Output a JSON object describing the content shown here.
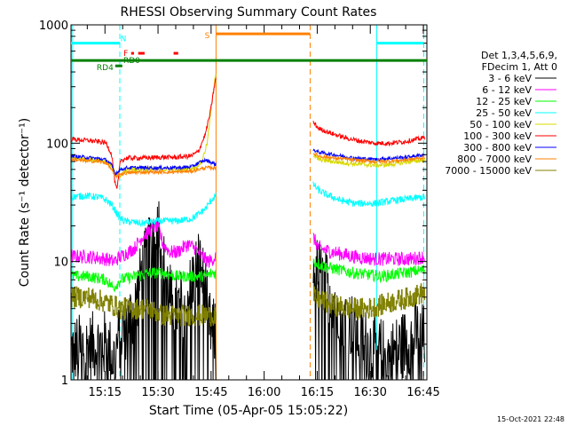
{
  "chart_data": {
    "type": "line",
    "title": "RHESSI Observing Summary Count Rates",
    "xlabel": "Start Time (05-Apr-05 15:05:22)",
    "ylabel": "Count Rate (s⁻¹ detector⁻¹)",
    "yscale": "log",
    "ylim": [
      1,
      1000
    ],
    "y_ticks": [
      {
        "value": 1,
        "label": "1"
      },
      {
        "value": 10,
        "label": "10"
      },
      {
        "value": 100,
        "label": "100"
      },
      {
        "value": 1000,
        "label": "1000"
      }
    ],
    "xlim_minutes": [
      0,
      100.6
    ],
    "x_ticks": [
      {
        "minute": 9.6,
        "label": "15:15"
      },
      {
        "minute": 24.6,
        "label": "15:30"
      },
      {
        "minute": 39.6,
        "label": "15:45"
      },
      {
        "minute": 54.6,
        "label": "16:00"
      },
      {
        "minute": 69.6,
        "label": "16:15"
      },
      {
        "minute": 84.6,
        "label": "16:30"
      },
      {
        "minute": 99.6,
        "label": "16:45"
      }
    ],
    "legend": {
      "placement": "right",
      "header": [
        "Det 1,3,4,5,6,9,",
        "FDecim 1, Att 0"
      ],
      "entries": [
        {
          "label": "3 - 6 keV",
          "color": "#000000"
        },
        {
          "label": "6 - 12 keV",
          "color": "#ff00ff"
        },
        {
          "label": "12 - 25 keV",
          "color": "#00ff00"
        },
        {
          "label": "25 - 50 keV",
          "color": "#00ffff"
        },
        {
          "label": "50 - 100 keV",
          "color": "#d8d800"
        },
        {
          "label": "100 - 300 keV",
          "color": "#ff0000"
        },
        {
          "label": "300 - 800 keV",
          "color": "#0000ff"
        },
        {
          "label": "800 - 7000 keV",
          "color": "#ff8000"
        },
        {
          "label": "7000 - 15000 keV",
          "color": "#808000"
        }
      ]
    },
    "series": [
      {
        "name": "3 - 6 keV",
        "color": "#000000",
        "noise": 0.6,
        "segments": [
          [
            [
              0,
              1.8
            ],
            [
              10,
              2
            ],
            [
              12,
              1.5
            ],
            [
              14,
              2.5
            ],
            [
              16,
              3
            ],
            [
              18,
              4
            ],
            [
              20,
              8
            ],
            [
              22,
              12
            ],
            [
              24,
              25
            ],
            [
              25,
              20
            ],
            [
              26,
              10
            ],
            [
              28,
              5
            ],
            [
              30,
              4
            ],
            [
              33,
              5
            ],
            [
              36,
              10
            ],
            [
              38,
              6
            ],
            [
              39,
              3
            ],
            [
              40,
              2.5
            ],
            [
              41,
              2.5
            ]
          ],
          [
            [
              68.5,
              9
            ],
            [
              70,
              8
            ],
            [
              73,
              6
            ],
            [
              76,
              4
            ],
            [
              79,
              3
            ],
            [
              82,
              2.2
            ],
            [
              86,
              1.8
            ],
            [
              90,
              1.6
            ],
            [
              94,
              2
            ],
            [
              98,
              2.5
            ],
            [
              100,
              2.2
            ]
          ]
        ]
      },
      {
        "name": "6 - 12 keV",
        "color": "#ff00ff",
        "noise": 0.12,
        "segments": [
          [
            [
              0,
              11
            ],
            [
              5,
              11
            ],
            [
              10,
              10.5
            ],
            [
              12,
              10
            ],
            [
              14,
              11
            ],
            [
              18,
              13
            ],
            [
              20,
              16
            ],
            [
              22,
              18
            ],
            [
              24,
              20
            ],
            [
              25,
              18
            ],
            [
              26,
              14
            ],
            [
              28,
              12
            ],
            [
              30,
              12
            ],
            [
              33,
              14
            ],
            [
              35,
              13
            ],
            [
              37,
              11
            ],
            [
              39,
              10
            ],
            [
              41,
              11
            ]
          ],
          [
            [
              68.5,
              16
            ],
            [
              70,
              13
            ],
            [
              74,
              12
            ],
            [
              80,
              11
            ],
            [
              86,
              10.5
            ],
            [
              92,
              10.5
            ],
            [
              96,
              10.5
            ],
            [
              100,
              11
            ]
          ]
        ]
      },
      {
        "name": "12 - 25 keV",
        "color": "#00ff00",
        "noise": 0.1,
        "segments": [
          [
            [
              0,
              7.5
            ],
            [
              5,
              7.5
            ],
            [
              10,
              7
            ],
            [
              12,
              6
            ],
            [
              14,
              7
            ],
            [
              18,
              7.5
            ],
            [
              22,
              8
            ],
            [
              26,
              8
            ],
            [
              30,
              7.5
            ],
            [
              34,
              7.5
            ],
            [
              38,
              7.5
            ],
            [
              40,
              8
            ],
            [
              41,
              8
            ]
          ],
          [
            [
              68.5,
              10
            ],
            [
              72,
              9
            ],
            [
              80,
              8
            ],
            [
              88,
              7.5
            ],
            [
              94,
              8
            ],
            [
              100,
              8.5
            ]
          ]
        ]
      },
      {
        "name": "25 - 50 keV",
        "color": "#00ffff",
        "noise": 0.06,
        "segments": [
          [
            [
              0,
              35
            ],
            [
              4,
              36
            ],
            [
              8,
              35
            ],
            [
              10,
              33
            ],
            [
              11.5,
              30
            ],
            [
              12.5,
              27
            ],
            [
              13.5,
              24
            ],
            [
              15,
              22
            ],
            [
              20,
              21
            ],
            [
              25,
              22
            ],
            [
              30,
              22
            ],
            [
              34,
              23
            ],
            [
              36,
              25
            ],
            [
              38,
              28
            ],
            [
              40,
              34
            ],
            [
              41,
              36
            ]
          ],
          [
            [
              68.5,
              45
            ],
            [
              70,
              40
            ],
            [
              72,
              37
            ],
            [
              76,
              33
            ],
            [
              80,
              31
            ],
            [
              86,
              31
            ],
            [
              92,
              33
            ],
            [
              96,
              34
            ],
            [
              100,
              35
            ]
          ]
        ]
      },
      {
        "name": "50 - 100 keV",
        "color": "#d8d800",
        "noise": 0.04,
        "segments": [
          [
            [
              0,
              75
            ],
            [
              5,
              73
            ],
            [
              10,
              71
            ],
            [
              11.5,
              65
            ],
            [
              12.5,
              55
            ],
            [
              13.5,
              50
            ],
            [
              14.5,
              55
            ],
            [
              16,
              60
            ],
            [
              20,
              60
            ],
            [
              25,
              60
            ],
            [
              30,
              60
            ],
            [
              35,
              62
            ],
            [
              37,
              70
            ],
            [
              38.5,
              100
            ],
            [
              39.5,
              180
            ],
            [
              40.5,
              330
            ],
            [
              41,
              400
            ]
          ],
          [
            [
              68.5,
              78
            ],
            [
              70,
              73
            ],
            [
              74,
              70
            ],
            [
              80,
              67
            ],
            [
              86,
              65
            ],
            [
              90,
              66
            ],
            [
              96,
              70
            ],
            [
              100,
              72
            ]
          ]
        ]
      },
      {
        "name": "100 - 300 keV",
        "color": "#ff0000",
        "noise": 0.04,
        "segments": [
          [
            [
              0,
              108
            ],
            [
              4,
              106
            ],
            [
              8,
              103
            ],
            [
              10,
              100
            ],
            [
              11.5,
              80
            ],
            [
              12.5,
              45
            ],
            [
              13,
              40
            ],
            [
              14,
              72
            ],
            [
              16,
              75
            ],
            [
              20,
              75
            ],
            [
              25,
              76
            ],
            [
              30,
              76
            ],
            [
              34,
              78
            ],
            [
              36,
              85
            ],
            [
              38,
              120
            ],
            [
              39.5,
              190
            ],
            [
              40.5,
              300
            ],
            [
              41,
              360
            ]
          ],
          [
            [
              68.5,
              150
            ],
            [
              70,
              133
            ],
            [
              74,
              120
            ],
            [
              78,
              110
            ],
            [
              82,
              104
            ],
            [
              86,
              100
            ],
            [
              90,
              100
            ],
            [
              94,
              103
            ],
            [
              98,
              108
            ],
            [
              100,
              112
            ]
          ]
        ]
      },
      {
        "name": "300 - 800 keV",
        "color": "#0000ff",
        "noise": 0.03,
        "segments": [
          [
            [
              0,
              78
            ],
            [
              4,
              76
            ],
            [
              8,
              74
            ],
            [
              10,
              72
            ],
            [
              11.5,
              65
            ],
            [
              12.5,
              55
            ],
            [
              14,
              60
            ],
            [
              16,
              62
            ],
            [
              20,
              62
            ],
            [
              25,
              62
            ],
            [
              30,
              62
            ],
            [
              34,
              63
            ],
            [
              36,
              68
            ],
            [
              38,
              72
            ],
            [
              39,
              70
            ],
            [
              41,
              66
            ]
          ],
          [
            [
              68.5,
              88
            ],
            [
              70,
              84
            ],
            [
              74,
              80
            ],
            [
              80,
              75
            ],
            [
              86,
              73
            ],
            [
              92,
              75
            ],
            [
              96,
              77
            ],
            [
              100,
              80
            ]
          ]
        ]
      },
      {
        "name": "800 - 7000 keV",
        "color": "#ff8000",
        "noise": 0.03,
        "segments": [
          [
            [
              0,
              73
            ],
            [
              4,
              71
            ],
            [
              8,
              70
            ],
            [
              10,
              68
            ],
            [
              11.5,
              60
            ],
            [
              12.5,
              52
            ],
            [
              14,
              55
            ],
            [
              16,
              56
            ],
            [
              20,
              57
            ],
            [
              25,
              57
            ],
            [
              30,
              57
            ],
            [
              34,
              58
            ],
            [
              36,
              60
            ],
            [
              38,
              62
            ],
            [
              40,
              62
            ],
            [
              41,
              61
            ]
          ],
          [
            [
              68.5,
              82
            ],
            [
              70,
              78
            ],
            [
              74,
              75
            ],
            [
              80,
              72
            ],
            [
              86,
              70
            ],
            [
              92,
              71
            ],
            [
              96,
              73
            ],
            [
              100,
              76
            ]
          ]
        ]
      },
      {
        "name": "7000 - 15000 keV",
        "color": "#808000",
        "noise": 0.18,
        "steps": true,
        "segments": [
          [
            [
              0,
              5
            ],
            [
              5,
              5
            ],
            [
              10,
              4.5
            ],
            [
              14,
              4
            ],
            [
              18,
              4
            ],
            [
              22,
              4
            ],
            [
              26,
              3.5
            ],
            [
              30,
              3.5
            ],
            [
              34,
              3.5
            ],
            [
              38,
              3.5
            ],
            [
              41,
              3.5
            ]
          ],
          [
            [
              68.5,
              5
            ],
            [
              72,
              4.5
            ],
            [
              78,
              4
            ],
            [
              84,
              4
            ],
            [
              90,
              4.5
            ],
            [
              96,
              5
            ],
            [
              100,
              5.5
            ]
          ]
        ]
      }
    ],
    "vertical_lines": [
      {
        "minute": 0.3,
        "color": "#00ffff",
        "style": "solid"
      },
      {
        "minute": 13.8,
        "color": "#00ffff",
        "style": "dashed"
      },
      {
        "minute": 41.0,
        "color": "#ff8000",
        "style": "solid"
      },
      {
        "minute": 67.6,
        "color": "#ff8000",
        "style": "dashed"
      },
      {
        "minute": 86.4,
        "color": "#00ffff",
        "style": "solid"
      },
      {
        "minute": 99.7,
        "color": "#00ffff",
        "style": "dashed"
      }
    ],
    "flag_bars": [
      {
        "label": "",
        "color": "#00ffff",
        "start": 0,
        "end": 13.8,
        "level": 700
      },
      {
        "label": "",
        "color": "#00ffff",
        "start": 86.4,
        "end": 99.7,
        "level": 700
      },
      {
        "label": "N",
        "color": "#00ffff",
        "start": 13.8,
        "end": 13.8,
        "level": 700
      },
      {
        "label": "S",
        "color": "#ff8000",
        "start": 41.0,
        "end": 67.6,
        "level": 840
      },
      {
        "label": "F",
        "color": "#ff0000",
        "start": 17.0,
        "end": 17.8,
        "level": 575
      },
      {
        "label": "",
        "color": "#ff0000",
        "start": 19.0,
        "end": 20.8,
        "level": 575
      },
      {
        "label": "",
        "color": "#ff0000",
        "start": 29.0,
        "end": 30.3,
        "level": 575
      },
      {
        "label": "RD0",
        "color": "#008000",
        "start": 0,
        "end": 100.6,
        "level": 500
      },
      {
        "label": "RD4",
        "color": "#008000",
        "start": 12.5,
        "end": 14.5,
        "level": 450
      }
    ]
  },
  "footer": {
    "date_stamp": "15-Oct-2021 22:48"
  }
}
